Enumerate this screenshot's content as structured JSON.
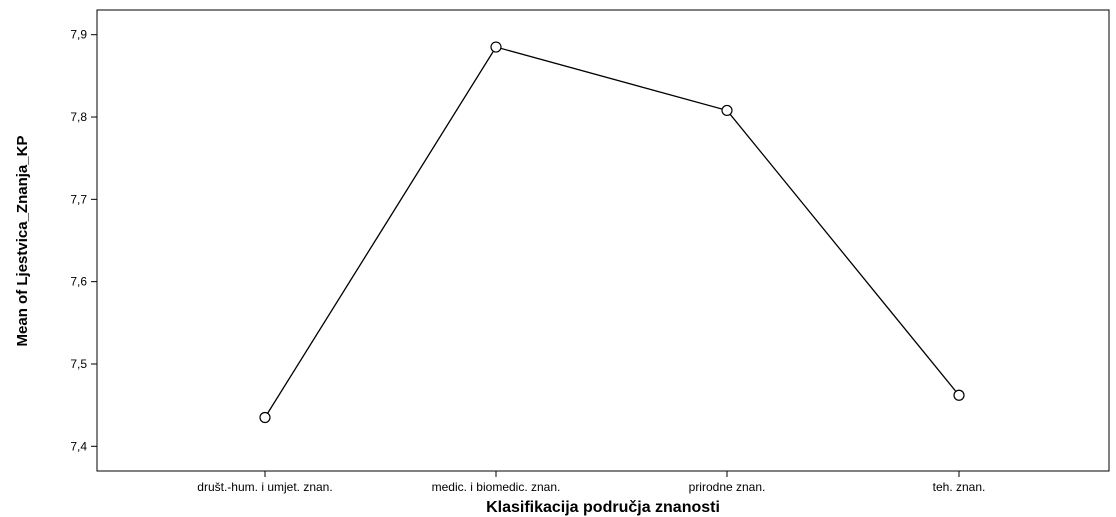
{
  "chart_data": {
    "type": "line",
    "title": "",
    "xlabel": "Klasifikacija područja znanosti",
    "ylabel": "Mean of Ljestvica_Znanja_KP",
    "categories": [
      "društ.-hum. i umjet. znan.",
      "medic. i biomedic. znan.",
      "prirodne znan.",
      "teh. znan."
    ],
    "series": [
      {
        "values": [
          7.435,
          7.885,
          7.808,
          7.462
        ]
      }
    ],
    "ylim": [
      7.37,
      7.93
    ],
    "yticks": [
      7.4,
      7.5,
      7.6,
      7.7,
      7.8,
      7.9
    ],
    "ytick_labels": [
      "7,4",
      "7,5",
      "7,6",
      "7,7",
      "7,8",
      "7,9"
    ],
    "marker": "open-circle",
    "grid": false,
    "legend": "none",
    "colors": {
      "line": "#000000",
      "frame": "#000000",
      "background": "#ffffff"
    }
  }
}
